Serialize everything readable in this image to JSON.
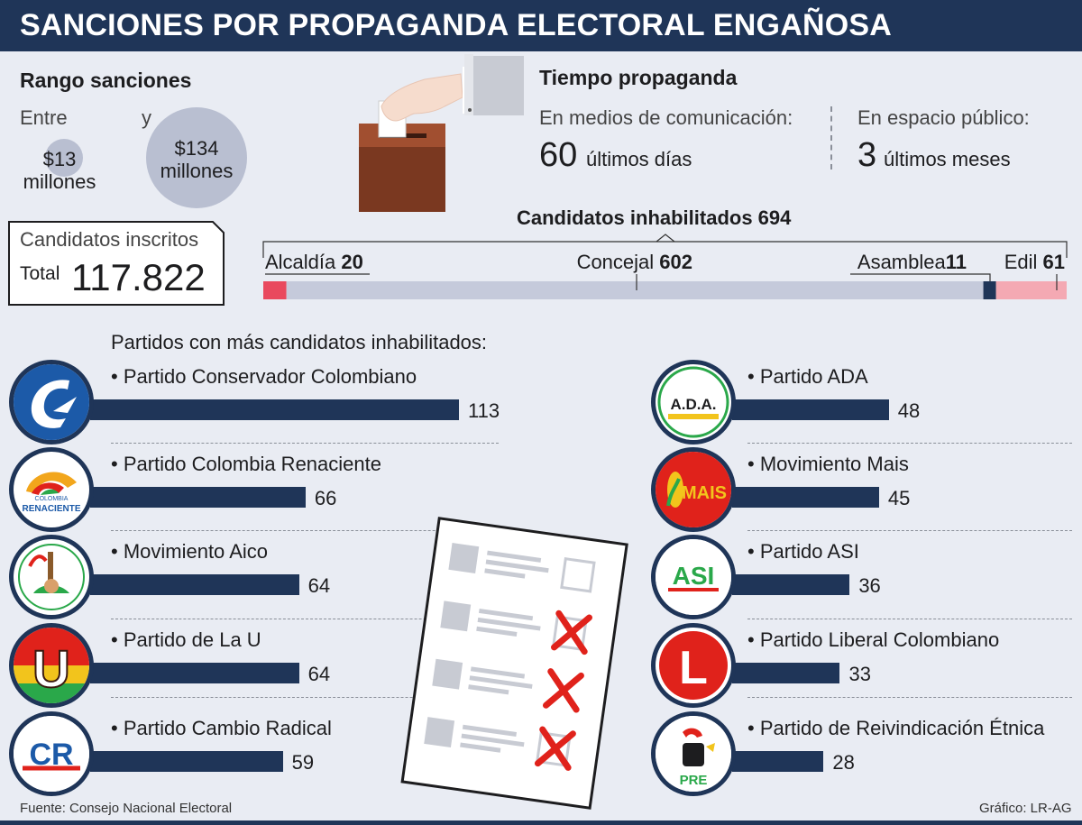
{
  "title": "SANCIONES POR PROPAGANDA ELECTORAL ENGAÑOSA",
  "rango": {
    "heading": "Rango sanciones",
    "entre": "Entre",
    "y": "y",
    "min": "$13 millones",
    "max": "$134 millones"
  },
  "inscritos": {
    "label": "Candidatos inscritos",
    "total_label": "Total",
    "total_value": "117.822"
  },
  "tiempo": {
    "heading": "Tiempo propaganda",
    "medios_label": "En medios de comunicación:",
    "medios_num": "60",
    "medios_unit": "últimos días",
    "espacio_label": "En espacio público:",
    "espacio_num": "3",
    "espacio_unit": "últimos meses"
  },
  "colors": {
    "navy": "#1f3558",
    "alcaldia": "#e9495e",
    "concejal": "#c5cadb",
    "asamblea": "#1f3558",
    "edil": "#f4a9b3",
    "bar": "#1f3558",
    "cross": "#e0221b"
  },
  "partidos_heading": "Partidos con más candidatos inhabilitados:",
  "source": "Fuente: Consejo Nacional Electoral",
  "credit": "Gráfico: LR-AG",
  "chart_data": [
    {
      "type": "bar",
      "orientation": "horizontal-stacked",
      "title": "Candidatos inhabilitados 694",
      "total": 694,
      "categories": [
        "Alcaldía",
        "Concejal",
        "Asamblea",
        "Edil"
      ],
      "values": [
        20,
        602,
        11,
        61
      ]
    },
    {
      "type": "bar",
      "orientation": "horizontal",
      "title": "Partidos con más candidatos inhabilitados:",
      "categories": [
        "• Partido Conservador Colombiano",
        "• Partido Colombia Renaciente",
        "• Movimiento Aico",
        "• Partido de La U",
        "• Partido Cambio Radical",
        "• Partido ADA",
        "• Movimiento Mais",
        "• Partido ASI",
        "• Partido Liberal Colombiano",
        "• Partido de Reivindicación Étnica"
      ],
      "values": [
        113,
        66,
        64,
        64,
        59,
        48,
        45,
        36,
        33,
        28
      ],
      "logos": [
        "C",
        "COLOMBIA RENACIENTE",
        "",
        "U",
        "CR",
        "A.D.A.",
        "MAIS",
        "ASI",
        "L",
        "PRE"
      ],
      "logo_icons": [
        "conservador-logo",
        "renaciente-logo",
        "aico-logo",
        "la-u-logo",
        "cambio-radical-logo",
        "ada-logo",
        "mais-logo",
        "asi-logo",
        "liberal-logo",
        "pre-logo"
      ]
    }
  ]
}
